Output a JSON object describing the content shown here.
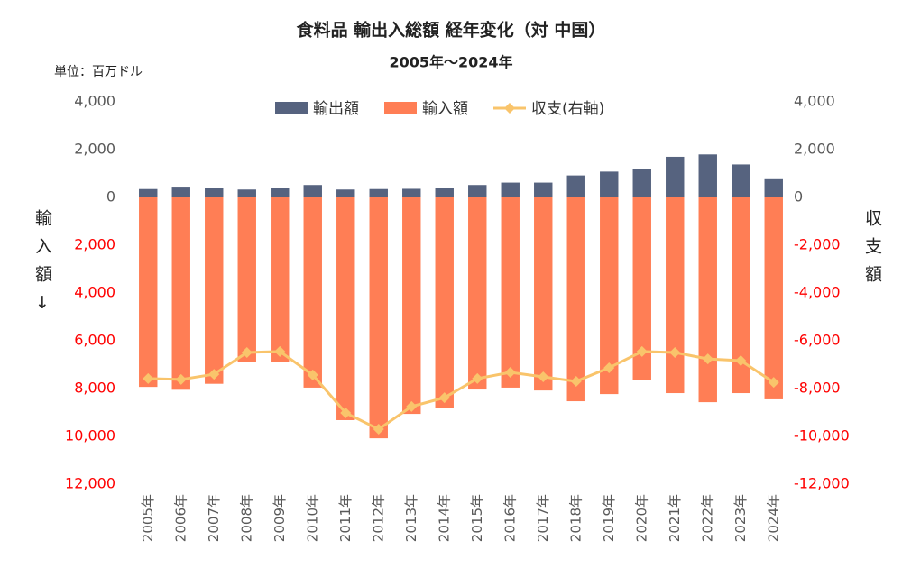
{
  "chart_data": {
    "type": "bar-line",
    "title": "食料品 輸出入総額 経年変化（対 中国）",
    "subtitle": "2005年～2024年",
    "unit_label": "単位：百万ドル",
    "ylabel": "輸入額↓",
    "y2label": "収支額",
    "categories": [
      "2005年",
      "2006年",
      "2007年",
      "2008年",
      "2009年",
      "2010年",
      "2011年",
      "2012年",
      "2013年",
      "2014年",
      "2015年",
      "2016年",
      "2017年",
      "2018年",
      "2019年",
      "2020年",
      "2021年",
      "2022年",
      "2023年",
      "2024年"
    ],
    "series": [
      {
        "name": "輸出額",
        "color": "#56637f",
        "kind": "bar",
        "values": [
          350,
          450,
          400,
          330,
          380,
          520,
          330,
          350,
          360,
          400,
          520,
          620,
          620,
          920,
          1080,
          1200,
          1700,
          1800,
          1380,
          800
        ]
      },
      {
        "name": "輸入額",
        "color": "#ff7e55",
        "kind": "bar",
        "values": [
          -7930,
          -8050,
          -7800,
          -6870,
          -6870,
          -7960,
          -9320,
          -10080,
          -9060,
          -8830,
          -8040,
          -7960,
          -8080,
          -8530,
          -8230,
          -7660,
          -8190,
          -8570,
          -8190,
          -8450
        ]
      },
      {
        "name": "収支(右軸)",
        "color": "#f9c46b",
        "kind": "line",
        "axis": "y2",
        "values": [
          -7580,
          -7620,
          -7400,
          -6490,
          -6450,
          -7430,
          -9020,
          -9700,
          -8750,
          -8380,
          -7580,
          -7320,
          -7510,
          -7700,
          -7130,
          -6450,
          -6490,
          -6760,
          -6830,
          -7740
        ]
      }
    ],
    "ylim": [
      -12000,
      4000
    ],
    "yticks": [
      {
        "value": 4000,
        "label": "4,000"
      },
      {
        "value": 2000,
        "label": "2,000"
      },
      0,
      {
        "value": -2000,
        "label": "2,000"
      },
      {
        "value": -4000,
        "label": "4,000"
      },
      {
        "value": -6000,
        "label": "6,000"
      },
      {
        "value": -8000,
        "label": "8,000"
      },
      {
        "value": -10000,
        "label": "10,000"
      },
      {
        "value": -12000,
        "label": "12,000"
      }
    ],
    "y2lim": [
      -12000,
      4000
    ],
    "y2ticks": [
      {
        "value": 4000,
        "label": "4,000"
      },
      {
        "value": 2000,
        "label": "2,000"
      },
      0,
      {
        "value": -2000,
        "label": "-2,000"
      },
      {
        "value": -4000,
        "label": "-4,000"
      },
      {
        "value": -6000,
        "label": "-6,000"
      },
      {
        "value": -8000,
        "label": "-8,000"
      },
      {
        "value": -10000,
        "label": "-10,000"
      },
      {
        "value": -12000,
        "label": "-12,000"
      }
    ],
    "negative_tick_color": "#ff0000",
    "legend": "top"
  }
}
